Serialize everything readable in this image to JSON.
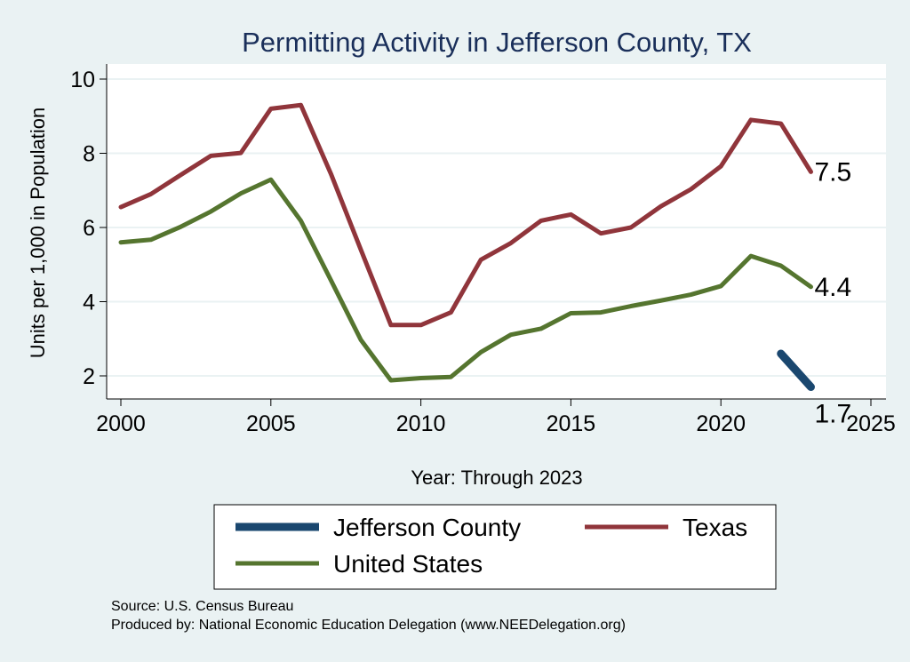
{
  "chart_data": {
    "type": "line",
    "title": "Permitting Activity in Jefferson County, TX",
    "xlabel": "Year: Through 2023",
    "ylabel": "Units per 1,000 in Population",
    "xlim": [
      2000,
      2025
    ],
    "ylim": [
      1.5,
      10.4
    ],
    "xticks": [
      2000,
      2005,
      2010,
      2015,
      2020,
      2025
    ],
    "yticks": [
      2,
      4,
      6,
      8,
      10
    ],
    "grid": true,
    "legend_position": "bottom",
    "series": [
      {
        "name": "Jefferson County",
        "color": "#1a476f",
        "x": [
          2022,
          2023
        ],
        "values": [
          2.6,
          1.7
        ],
        "end_label": "1.7"
      },
      {
        "name": "Texas",
        "color": "#90353b",
        "x": [
          2000,
          2001,
          2002,
          2003,
          2004,
          2005,
          2006,
          2007,
          2008,
          2009,
          2010,
          2011,
          2012,
          2013,
          2014,
          2015,
          2016,
          2017,
          2018,
          2019,
          2020,
          2021,
          2022,
          2023
        ],
        "values": [
          6.55,
          6.9,
          7.42,
          7.93,
          8.01,
          9.2,
          9.3,
          7.45,
          5.4,
          3.37,
          3.37,
          3.71,
          5.13,
          5.58,
          6.18,
          6.35,
          5.84,
          6.0,
          6.57,
          7.03,
          7.65,
          8.9,
          8.8,
          7.5
        ],
        "end_label": "7.5"
      },
      {
        "name": "United States",
        "color": "#55752f",
        "x": [
          2000,
          2001,
          2002,
          2003,
          2004,
          2005,
          2006,
          2007,
          2008,
          2009,
          2010,
          2011,
          2012,
          2013,
          2014,
          2015,
          2016,
          2017,
          2018,
          2019,
          2020,
          2021,
          2022,
          2023
        ],
        "values": [
          5.6,
          5.67,
          6.02,
          6.43,
          6.92,
          7.29,
          6.18,
          4.58,
          2.97,
          1.88,
          1.94,
          1.97,
          2.64,
          3.11,
          3.27,
          3.69,
          3.71,
          3.88,
          4.03,
          4.19,
          4.42,
          5.23,
          4.97,
          4.4
        ],
        "end_label": "4.4"
      }
    ],
    "notes": [
      "Source: U.S. Census Bureau",
      "Produced by: National Economic Education Delegation (www.NEEDelegation.org)"
    ]
  }
}
